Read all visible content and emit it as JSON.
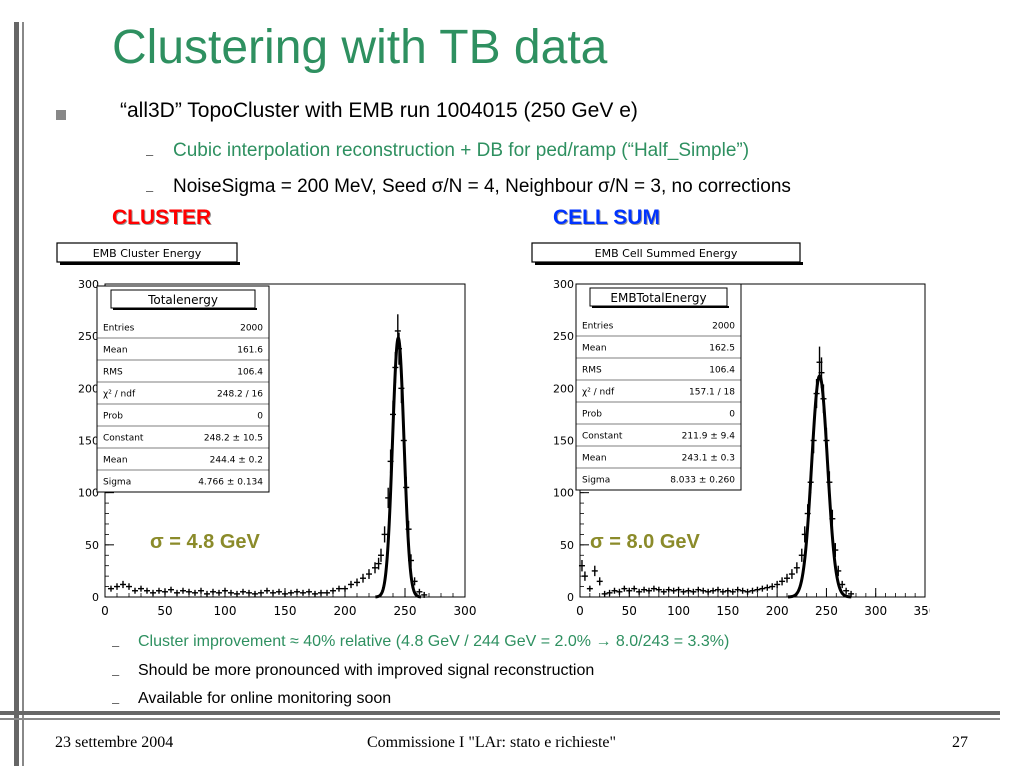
{
  "slide": {
    "title": "Clustering with TB data",
    "bullet_main": "“all3D” TopoCluster with EMB run 1004015 (250 GeV e)",
    "sub1": "Cubic interpolation reconstruction + DB for ped/ramp (“Half_Simple”)",
    "sub2": "NoiseSigma = 200 MeV,   Seed σ/N  = 4,    Neighbour σ/N = 3, no corrections",
    "label_cluster": "CLUSTER",
    "label_cellsum": "CELL SUM",
    "bottom1": "Cluster improvement ≈ 40% relative (4.8 GeV / 244 GeV = 2.0% → 8.0/243 = 3.3%)",
    "bottom2": "Should be more pronounced with improved signal reconstruction",
    "bottom3": "Available for online monitoring soon",
    "dash": "–"
  },
  "footer": {
    "date": "23 settembre 2004",
    "center": "Commissione I \"LAr: stato e richieste\"",
    "page": "27"
  },
  "colors": {
    "title_green": "#2e9060",
    "cluster_red": "#ff0000",
    "cellsum_blue": "#0033ff",
    "sigma_olive": "#8b8b2a"
  },
  "chart_data": [
    {
      "type": "histogram",
      "title": "EMB Cluster Energy",
      "xlim": [
        0,
        300
      ],
      "ylim": [
        0,
        300
      ],
      "xticks": [
        "0",
        "50",
        "100",
        "150",
        "200",
        "250",
        "300"
      ],
      "yticks": [
        "0",
        "50",
        "100",
        "150",
        "200",
        "250",
        "300"
      ],
      "annotation": "σ = 4.8 GeV",
      "stats_title": "Totalenergy",
      "stats": [
        [
          "Entries",
          "2000"
        ],
        [
          "Mean",
          "161.6"
        ],
        [
          "RMS",
          "106.4"
        ],
        [
          "χ² / ndf",
          "248.2 / 16"
        ],
        [
          "Prob",
          "0"
        ],
        [
          "Constant",
          "248.2 ± 10.5"
        ],
        [
          "Mean",
          "244.4 ± 0.2"
        ],
        [
          "Sigma",
          "4.766 ± 0.134"
        ]
      ],
      "fit": {
        "constant": 248.2,
        "mean": 244.4,
        "sigma": 4.766
      },
      "points": [
        [
          5,
          8
        ],
        [
          10,
          10
        ],
        [
          15,
          12
        ],
        [
          20,
          10
        ],
        [
          25,
          6
        ],
        [
          30,
          8
        ],
        [
          35,
          6
        ],
        [
          40,
          4
        ],
        [
          45,
          6
        ],
        [
          50,
          5
        ],
        [
          55,
          7
        ],
        [
          60,
          4
        ],
        [
          65,
          6
        ],
        [
          70,
          5
        ],
        [
          75,
          4
        ],
        [
          80,
          6
        ],
        [
          85,
          3
        ],
        [
          90,
          5
        ],
        [
          95,
          4
        ],
        [
          100,
          6
        ],
        [
          105,
          4
        ],
        [
          110,
          3
        ],
        [
          115,
          5
        ],
        [
          120,
          4
        ],
        [
          125,
          3
        ],
        [
          130,
          4
        ],
        [
          135,
          6
        ],
        [
          140,
          4
        ],
        [
          145,
          5
        ],
        [
          150,
          3
        ],
        [
          155,
          4
        ],
        [
          160,
          5
        ],
        [
          165,
          4
        ],
        [
          170,
          5
        ],
        [
          175,
          3
        ],
        [
          180,
          4
        ],
        [
          185,
          4
        ],
        [
          190,
          6
        ],
        [
          195,
          8
        ],
        [
          200,
          8
        ],
        [
          205,
          12
        ],
        [
          210,
          14
        ],
        [
          215,
          18
        ],
        [
          220,
          22
        ],
        [
          225,
          28
        ],
        [
          228,
          32
        ],
        [
          230,
          40
        ],
        [
          233,
          60
        ],
        [
          236,
          95
        ],
        [
          238,
          130
        ],
        [
          240,
          175
        ],
        [
          242,
          220
        ],
        [
          244,
          255
        ],
        [
          245,
          238
        ],
        [
          247,
          200
        ],
        [
          249,
          150
        ],
        [
          251,
          105
        ],
        [
          253,
          65
        ],
        [
          255,
          35
        ],
        [
          258,
          15
        ],
        [
          262,
          5
        ],
        [
          266,
          2
        ]
      ]
    },
    {
      "type": "histogram",
      "title": "EMB Cell Summed Energy",
      "xlim": [
        0,
        350
      ],
      "ylim": [
        0,
        300
      ],
      "xticks": [
        "0",
        "50",
        "100",
        "150",
        "200",
        "250",
        "300",
        "350"
      ],
      "yticks": [
        "0",
        "50",
        "100",
        "150",
        "200",
        "250",
        "300"
      ],
      "annotation": "σ = 8.0 GeV",
      "stats_title": "EMBTotalEnergy",
      "stats": [
        [
          "Entries",
          "2000"
        ],
        [
          "Mean",
          "162.5"
        ],
        [
          "RMS",
          "106.4"
        ],
        [
          "χ² / ndf",
          "157.1 / 18"
        ],
        [
          "Prob",
          "0"
        ],
        [
          "Constant",
          "211.9 ± 9.4"
        ],
        [
          "Mean",
          "243.1 ± 0.3"
        ],
        [
          "Sigma",
          "8.033 ± 0.260"
        ]
      ],
      "fit": {
        "constant": 211.9,
        "mean": 243.1,
        "sigma": 8.033
      },
      "points": [
        [
          2,
          30
        ],
        [
          5,
          20
        ],
        [
          10,
          8
        ],
        [
          15,
          25
        ],
        [
          20,
          15
        ],
        [
          25,
          3
        ],
        [
          30,
          4
        ],
        [
          35,
          6
        ],
        [
          40,
          5
        ],
        [
          45,
          8
        ],
        [
          50,
          6
        ],
        [
          55,
          8
        ],
        [
          60,
          5
        ],
        [
          65,
          7
        ],
        [
          70,
          6
        ],
        [
          75,
          8
        ],
        [
          80,
          7
        ],
        [
          85,
          5
        ],
        [
          90,
          7
        ],
        [
          95,
          6
        ],
        [
          100,
          7
        ],
        [
          105,
          5
        ],
        [
          110,
          6
        ],
        [
          115,
          5
        ],
        [
          120,
          7
        ],
        [
          125,
          6
        ],
        [
          130,
          5
        ],
        [
          135,
          6
        ],
        [
          140,
          7
        ],
        [
          145,
          5
        ],
        [
          150,
          6
        ],
        [
          155,
          5
        ],
        [
          160,
          7
        ],
        [
          165,
          6
        ],
        [
          170,
          5
        ],
        [
          175,
          6
        ],
        [
          180,
          7
        ],
        [
          185,
          8
        ],
        [
          190,
          9
        ],
        [
          195,
          10
        ],
        [
          200,
          12
        ],
        [
          205,
          15
        ],
        [
          210,
          18
        ],
        [
          215,
          22
        ],
        [
          220,
          28
        ],
        [
          225,
          40
        ],
        [
          228,
          60
        ],
        [
          231,
          80
        ],
        [
          234,
          110
        ],
        [
          237,
          150
        ],
        [
          240,
          195
        ],
        [
          243,
          225
        ],
        [
          245,
          215
        ],
        [
          247,
          190
        ],
        [
          250,
          150
        ],
        [
          253,
          110
        ],
        [
          256,
          75
        ],
        [
          259,
          45
        ],
        [
          262,
          25
        ],
        [
          266,
          12
        ],
        [
          270,
          6
        ],
        [
          275,
          3
        ]
      ]
    }
  ]
}
